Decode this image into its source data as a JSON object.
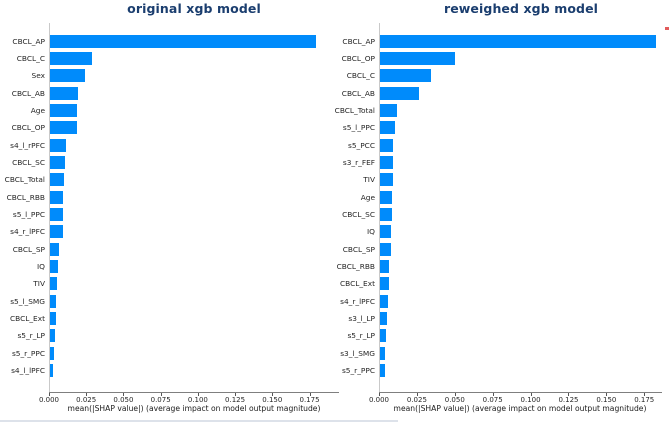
{
  "chart_data": [
    {
      "type": "bar",
      "orientation": "horizontal",
      "title": "original xgb model",
      "xlabel": "mean(|SHAP value|) (average impact on model output magnitude)",
      "categories": [
        "CBCL_AP",
        "CBCL_C",
        "Sex",
        "CBCL_AB",
        "Age",
        "CBCL_OP",
        "s4_l_rPFC",
        "CBCL_SC",
        "CBCL_Total",
        "CBCL_RBB",
        "s5_l_PPC",
        "s4_r_lPFC",
        "CBCL_SP",
        "IQ",
        "TIV",
        "s5_l_SMG",
        "CBCL_Ext",
        "s5_r_LP",
        "s5_r_PPC",
        "s4_l_lPFC"
      ],
      "values": [
        0.179,
        0.028,
        0.0235,
        0.0186,
        0.0183,
        0.018,
        0.0107,
        0.0102,
        0.0095,
        0.009,
        0.0088,
        0.0085,
        0.0062,
        0.0053,
        0.0048,
        0.0042,
        0.0037,
        0.0033,
        0.0027,
        0.0017
      ],
      "xticks": [
        0,
        0.025,
        0.05,
        0.075,
        0.1,
        0.125,
        0.15,
        0.175
      ],
      "xtick_labels": [
        "0.000",
        "0.025",
        "0.050",
        "0.075",
        "0.100",
        "0.125",
        "0.150",
        "0.175"
      ],
      "xlim": [
        0,
        0.1948
      ],
      "grid": false,
      "legend": "none"
    },
    {
      "type": "bar",
      "orientation": "horizontal",
      "title": "reweighed xgb model",
      "xlabel": "mean(|SHAP value|) (average impact on model output magnitude)",
      "categories": [
        "CBCL_AP",
        "CBCL_OP",
        "CBCL_C",
        "CBCL_AB",
        "CBCL_Total",
        "s5_l_PPC",
        "s5_PCC",
        "s3_r_FEF",
        "TIV",
        "Age",
        "CBCL_SC",
        "IQ",
        "CBCL_SP",
        "CBCL_RBB",
        "CBCL_Ext",
        "s4_r_lPFC",
        "s3_l_LP",
        "s5_r_LP",
        "s3_l_SMG",
        "s5_r_PPC"
      ],
      "values": [
        0.182,
        0.0497,
        0.0336,
        0.0259,
        0.011,
        0.0101,
        0.0088,
        0.0084,
        0.0084,
        0.0079,
        0.0079,
        0.0075,
        0.0075,
        0.0061,
        0.0057,
        0.0053,
        0.0048,
        0.004,
        0.0035,
        0.0033
      ],
      "xticks": [
        0,
        0.025,
        0.05,
        0.075,
        0.1,
        0.125,
        0.15,
        0.175
      ],
      "xtick_labels": [
        "0.000",
        "0.025",
        "0.050",
        "0.075",
        "0.100",
        "0.125",
        "0.150",
        "0.175"
      ],
      "xlim": [
        0,
        0.1867
      ],
      "grid": false,
      "legend": "none"
    }
  ],
  "colors": {
    "bar": "#008bfb",
    "title_text": "#1b3e6f",
    "tick_text": "#262626",
    "axis_label_text": "#1a1a1a",
    "left_spine": "#c9c9c9",
    "bottom_spine": "#7f7f7f"
  }
}
